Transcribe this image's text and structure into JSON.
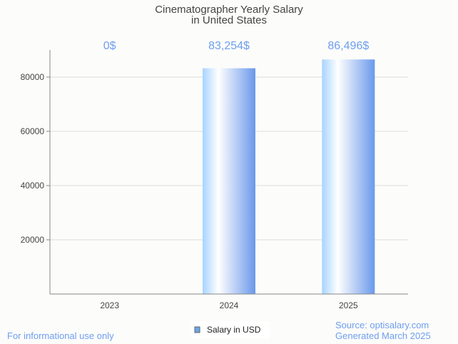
{
  "chart_data": {
    "type": "bar",
    "title": "Cinematographer Yearly Salary",
    "subtitle": "in United States",
    "categories": [
      "2023",
      "2024",
      "2025"
    ],
    "series": [
      {
        "name": "Salary in USD",
        "values": [
          0,
          83254,
          86496
        ]
      }
    ],
    "data_labels": [
      "0$",
      "83,254$",
      "86,496$"
    ],
    "yticks": [
      20000,
      40000,
      60000,
      80000
    ],
    "ylim": [
      0,
      90000
    ],
    "xlabel": "",
    "ylabel": "",
    "grid": true,
    "legend": "bottom-center",
    "colors": {
      "bar_light": "#a8d4ff",
      "bar_mid": "#ffffff",
      "bar_dark": "#6a98ea",
      "label": "#6f9ef0"
    }
  },
  "footer": {
    "left": "For informational use only",
    "source": "Source: optisalary.com",
    "generated": "Generated March 2025"
  }
}
